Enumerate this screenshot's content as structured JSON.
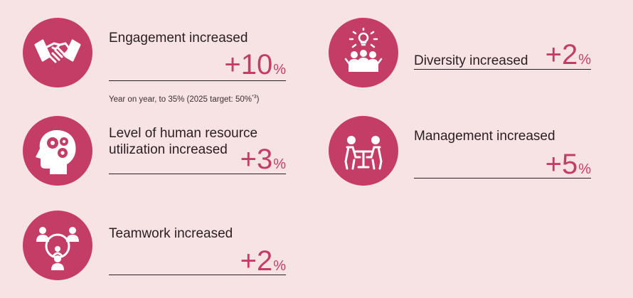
{
  "colors": {
    "accent": "#c43d66",
    "background": "#f7e3e4",
    "text": "#2a1e22"
  },
  "items": [
    {
      "id": "engagement",
      "icon": "handshake-icon",
      "label": "Engagement increased",
      "value": "+10",
      "unit": "%",
      "note": {
        "text": "Year on year, to 35% (2025 target: 50%",
        "mark": "*3",
        "close": ")"
      }
    },
    {
      "id": "diversity",
      "icon": "idea-team-icon",
      "label": "Diversity increased",
      "value": "+2",
      "unit": "%"
    },
    {
      "id": "utilization",
      "icon": "head-gears-icon",
      "label_lines": [
        "Level of human resource",
        "utilization increased"
      ],
      "value": "+3",
      "unit": "%"
    },
    {
      "id": "management",
      "icon": "meeting-table-icon",
      "label": "Management increased",
      "value": "+5",
      "unit": "%"
    },
    {
      "id": "teamwork",
      "icon": "team-network-icon",
      "label": "Teamwork increased",
      "value": "+2",
      "unit": "%"
    }
  ]
}
